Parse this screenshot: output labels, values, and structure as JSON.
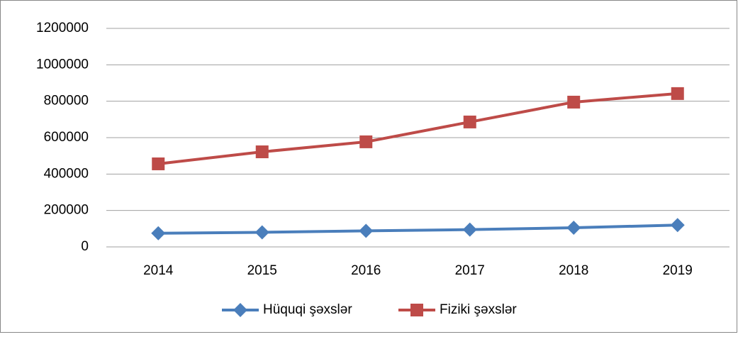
{
  "chart_data": {
    "type": "line",
    "categories": [
      "2014",
      "2015",
      "2016",
      "2017",
      "2018",
      "2019"
    ],
    "series": [
      {
        "name": "Hüquqi şəxslər",
        "color": "#4a7ebb",
        "marker": "diamond",
        "values": [
          75000,
          80000,
          88000,
          95000,
          105000,
          120000
        ]
      },
      {
        "name": "Fiziki şəxslər",
        "color": "#be4b48",
        "marker": "square",
        "values": [
          456000,
          522000,
          577000,
          686000,
          795000,
          842000
        ]
      }
    ],
    "ylim": [
      0,
      1200000
    ],
    "yticks": [
      0,
      200000,
      400000,
      600000,
      800000,
      1000000,
      1200000
    ],
    "grid": true,
    "legend": "bottom"
  }
}
